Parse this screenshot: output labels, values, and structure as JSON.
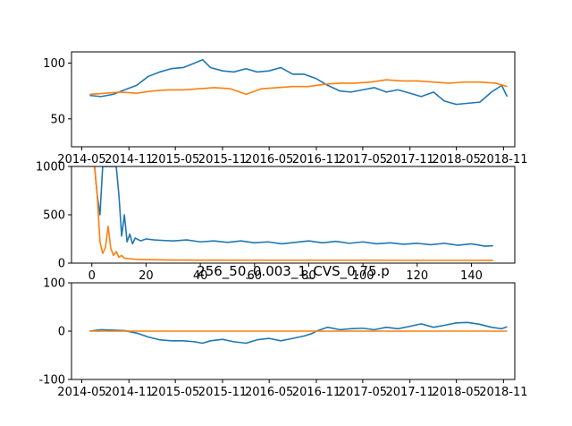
{
  "figure_title": "256_50_0.003_1_CVS_0.75.p",
  "colors": {
    "series1": "#1f77b4",
    "series2": "#ff7f0e"
  },
  "chart_data": [
    {
      "type": "line",
      "x_type": "date",
      "xlim": [
        "2014-03-22",
        "2018-12-15"
      ],
      "ylim": [
        25,
        110
      ],
      "x_ticks": [
        "2014-05",
        "2014-11",
        "2015-05",
        "2015-11",
        "2016-05",
        "2016-11",
        "2017-05",
        "2017-11",
        "2018-05",
        "2018-11"
      ],
      "y_ticks": [
        50,
        100
      ],
      "series": [
        {
          "x": [
            "2014-06-01",
            "2014-07-15",
            "2014-09-01",
            "2014-10-15",
            "2014-12-01",
            "2015-01-15",
            "2015-03-01",
            "2015-04-15",
            "2015-06-01",
            "2015-07-15",
            "2015-08-15",
            "2015-09-15",
            "2015-11-01",
            "2015-12-15",
            "2016-02-01",
            "2016-03-15",
            "2016-05-01",
            "2016-06-15",
            "2016-08-01",
            "2016-09-15",
            "2016-11-01",
            "2016-12-15",
            "2017-02-01",
            "2017-03-15",
            "2017-05-01",
            "2017-06-15",
            "2017-08-01",
            "2017-09-15",
            "2017-11-01",
            "2017-12-15",
            "2018-02-01",
            "2018-03-15",
            "2018-05-01",
            "2018-06-15",
            "2018-08-01",
            "2018-09-15",
            "2018-10-25",
            "2018-11-15"
          ],
          "values": [
            71,
            70,
            72,
            76,
            80,
            88,
            92,
            95,
            96,
            100,
            103,
            96,
            93,
            92,
            95,
            92,
            93,
            96,
            90,
            90,
            86,
            80,
            75,
            74,
            76,
            78,
            74,
            76,
            73,
            70,
            74,
            66,
            63,
            64,
            65,
            74,
            80,
            70
          ]
        },
        {
          "x": [
            "2014-06-01",
            "2014-08-01",
            "2014-10-01",
            "2014-12-01",
            "2015-02-01",
            "2015-04-01",
            "2015-06-01",
            "2015-08-01",
            "2015-10-01",
            "2015-12-01",
            "2016-02-01",
            "2016-04-01",
            "2016-06-01",
            "2016-08-01",
            "2016-10-01",
            "2016-12-01",
            "2017-02-01",
            "2017-04-01",
            "2017-06-01",
            "2017-08-01",
            "2017-10-01",
            "2017-12-01",
            "2018-02-01",
            "2018-04-01",
            "2018-06-01",
            "2018-08-01",
            "2018-10-01",
            "2018-11-15"
          ],
          "values": [
            72,
            73,
            74,
            73,
            75,
            76,
            76,
            77,
            78,
            77,
            72,
            77,
            78,
            79,
            79,
            81,
            82,
            82,
            83,
            85,
            84,
            84,
            83,
            82,
            83,
            83,
            82,
            79
          ]
        }
      ]
    },
    {
      "type": "line",
      "xlim": [
        -7.5,
        156
      ],
      "ylim": [
        0,
        1000
      ],
      "x_ticks": [
        0,
        20,
        40,
        60,
        80,
        100,
        120,
        140
      ],
      "y_ticks": [
        0,
        500,
        1000
      ],
      "series": [
        {
          "x": [
            1,
            2,
            3,
            4,
            5,
            6,
            7,
            8,
            9,
            10,
            11,
            12,
            13,
            14,
            15,
            16,
            18,
            20,
            23,
            26,
            30,
            35,
            40,
            45,
            50,
            55,
            60,
            65,
            70,
            75,
            80,
            85,
            90,
            95,
            100,
            105,
            110,
            115,
            120,
            125,
            130,
            135,
            140,
            145,
            148
          ],
          "values": [
            1000,
            700,
            500,
            1000,
            1000,
            1000,
            1000,
            1000,
            1000,
            700,
            280,
            500,
            220,
            300,
            200,
            260,
            230,
            250,
            240,
            235,
            230,
            240,
            220,
            230,
            215,
            230,
            210,
            220,
            200,
            215,
            230,
            210,
            225,
            205,
            220,
            200,
            210,
            195,
            205,
            190,
            205,
            185,
            200,
            175,
            180
          ]
        },
        {
          "x": [
            1,
            2,
            3,
            4,
            5,
            6,
            7,
            8,
            9,
            10,
            11,
            12,
            14,
            16,
            18,
            20,
            25,
            30,
            40,
            60,
            80,
            100,
            120,
            140,
            148
          ],
          "values": [
            1000,
            700,
            220,
            100,
            160,
            380,
            150,
            80,
            120,
            60,
            80,
            50,
            45,
            40,
            38,
            36,
            34,
            32,
            31,
            30,
            30,
            30,
            29,
            29,
            28
          ]
        }
      ]
    },
    {
      "type": "line",
      "x_type": "date",
      "xlim": [
        "2014-03-22",
        "2018-12-15"
      ],
      "ylim": [
        -100,
        100
      ],
      "x_ticks": [
        "2014-05",
        "2014-11",
        "2015-05",
        "2015-11",
        "2016-05",
        "2016-11",
        "2017-05",
        "2017-11",
        "2018-05",
        "2018-11"
      ],
      "y_ticks": [
        -100,
        0,
        100
      ],
      "series": [
        {
          "x": [
            "2014-06-01",
            "2014-07-15",
            "2014-09-01",
            "2014-10-15",
            "2014-12-01",
            "2015-01-15",
            "2015-03-01",
            "2015-04-15",
            "2015-06-01",
            "2015-07-15",
            "2015-08-15",
            "2015-09-15",
            "2015-11-01",
            "2015-12-15",
            "2016-02-01",
            "2016-03-15",
            "2016-05-01",
            "2016-06-15",
            "2016-08-01",
            "2016-09-15",
            "2016-10-15",
            "2016-11-01",
            "2016-12-15",
            "2017-02-01",
            "2017-03-15",
            "2017-05-01",
            "2017-06-15",
            "2017-08-01",
            "2017-09-15",
            "2017-11-01",
            "2017-12-15",
            "2018-02-01",
            "2018-03-15",
            "2018-05-01",
            "2018-06-15",
            "2018-08-01",
            "2018-09-15",
            "2018-10-25",
            "2018-11-15"
          ],
          "values": [
            0,
            3,
            2,
            1,
            -4,
            -12,
            -18,
            -20,
            -20,
            -22,
            -25,
            -20,
            -17,
            -22,
            -25,
            -18,
            -15,
            -20,
            -15,
            -10,
            -5,
            0,
            8,
            3,
            5,
            6,
            3,
            8,
            5,
            10,
            15,
            8,
            12,
            17,
            18,
            14,
            8,
            5,
            9
          ]
        },
        {
          "x": [
            "2014-06-01",
            "2018-11-15"
          ],
          "values": [
            0,
            0
          ]
        }
      ]
    }
  ]
}
